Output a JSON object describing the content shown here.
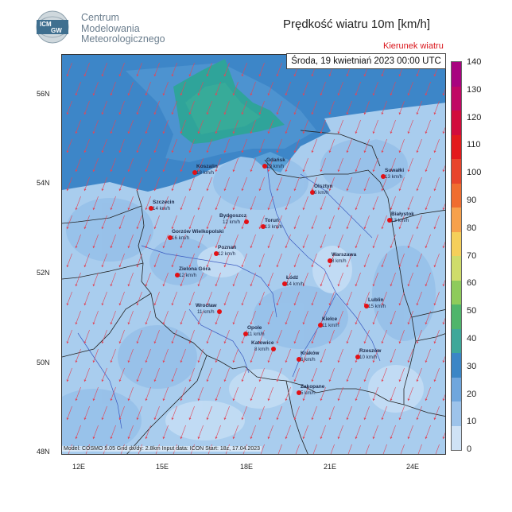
{
  "org": {
    "line1": "Centrum",
    "line2": "Modelowania",
    "line3": "Meteorologicznego",
    "logo_text_top": "ICM",
    "logo_text_bottom": "GW"
  },
  "title": "Prędkość wiatru 10m [km/h]",
  "subtitle": "Kierunek wiatru",
  "date": "Środa, 19 kwietniań 2023 00:00 UTC",
  "footer": "Model: COSMO 5.05   Grid dx/dy: 2.8km   Input data: ICON   Start: 18z, 17.04.2023",
  "lat_labels": [
    "56N",
    "54N",
    "52N",
    "50N",
    "48N"
  ],
  "lon_labels": [
    "12E",
    "15E",
    "18E",
    "21E",
    "24E"
  ],
  "colorbar": {
    "ticks": [
      "140",
      "130",
      "120",
      "110",
      "100",
      "90",
      "80",
      "70",
      "60",
      "50",
      "40",
      "30",
      "20",
      "10",
      "0"
    ],
    "colors": [
      "#a8047f",
      "#c00864",
      "#d20c3c",
      "#e31a1c",
      "#e8452b",
      "#f06d2f",
      "#f7a14b",
      "#f5cf5a",
      "#cfdc6a",
      "#8ecb5b",
      "#4fb56b",
      "#3ea89a",
      "#3b86c6",
      "#6fa6dd",
      "#9dc3ea",
      "#cfe2f5"
    ]
  },
  "cities": [
    {
      "name": "Gdańsk",
      "speed": "19 km/h"
    },
    {
      "name": "Koszalin",
      "speed": "18 km/h"
    },
    {
      "name": "Suwałki",
      "speed": "13 km/h"
    },
    {
      "name": "Olsztyn",
      "speed": "6 km/h"
    },
    {
      "name": "Szczecin",
      "speed": "14 km/h"
    },
    {
      "name": "Bydgoszcz",
      "speed": "12 km/h"
    },
    {
      "name": "Toruń",
      "speed": "13 km/h"
    },
    {
      "name": "Białystok",
      "speed": "13 km/h"
    },
    {
      "name": "Gorzów Wielkopolski",
      "speed": "16 km/h"
    },
    {
      "name": "Poznań",
      "speed": "12 km/h"
    },
    {
      "name": "Warszawa",
      "speed": "8 km/h"
    },
    {
      "name": "Zielona Góra",
      "speed": "12 km/h"
    },
    {
      "name": "Łódź",
      "speed": "14 km/h"
    },
    {
      "name": "Wrocław",
      "speed": "11 km/h"
    },
    {
      "name": "Lublin",
      "speed": "15 km/h"
    },
    {
      "name": "Kielce",
      "speed": "11 km/h"
    },
    {
      "name": "Opole",
      "speed": "11 km/h"
    },
    {
      "name": "Katowice",
      "speed": "8 km/h"
    },
    {
      "name": "Kraków",
      "speed": "6 km/h"
    },
    {
      "name": "Rzeszów",
      "speed": "10 km/h"
    },
    {
      "name": "Zakopane",
      "speed": "5 km/h"
    }
  ]
}
